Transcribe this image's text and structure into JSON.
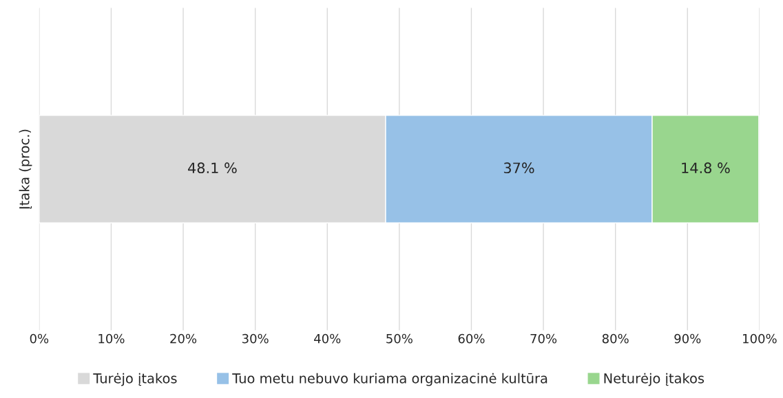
{
  "chart_data": {
    "type": "bar",
    "orientation": "horizontal",
    "stacked": true,
    "ylabel": "Įtaka (proc.)",
    "categories": [
      null
    ],
    "series": [
      {
        "name": "Turėjo įtakos",
        "color": "#d9d9d9",
        "values": [
          48.1
        ],
        "value_labels": [
          "48.1 %"
        ]
      },
      {
        "name": "Tuo metu nebuvo kuriama organizacinė kultūra",
        "color": "#97c1e7",
        "values": [
          37
        ],
        "value_labels": [
          "37%"
        ]
      },
      {
        "name": "Neturėjo įtakos",
        "color": "#99d68e",
        "values": [
          14.8
        ],
        "value_labels": [
          "14.8 %"
        ]
      }
    ],
    "xlim": [
      0,
      100
    ],
    "xticks": [
      {
        "value": 0,
        "label": "0%"
      },
      {
        "value": 10,
        "label": "10%"
      },
      {
        "value": 20,
        "label": "20%"
      },
      {
        "value": 30,
        "label": "30%"
      },
      {
        "value": 40,
        "label": "40%"
      },
      {
        "value": 50,
        "label": "50%"
      },
      {
        "value": 60,
        "label": "60%"
      },
      {
        "value": 70,
        "label": "70%"
      },
      {
        "value": 80,
        "label": "80%"
      },
      {
        "value": 90,
        "label": "90%"
      },
      {
        "value": 100,
        "label": "100%"
      }
    ],
    "grid": "x",
    "legend": "bottom"
  }
}
